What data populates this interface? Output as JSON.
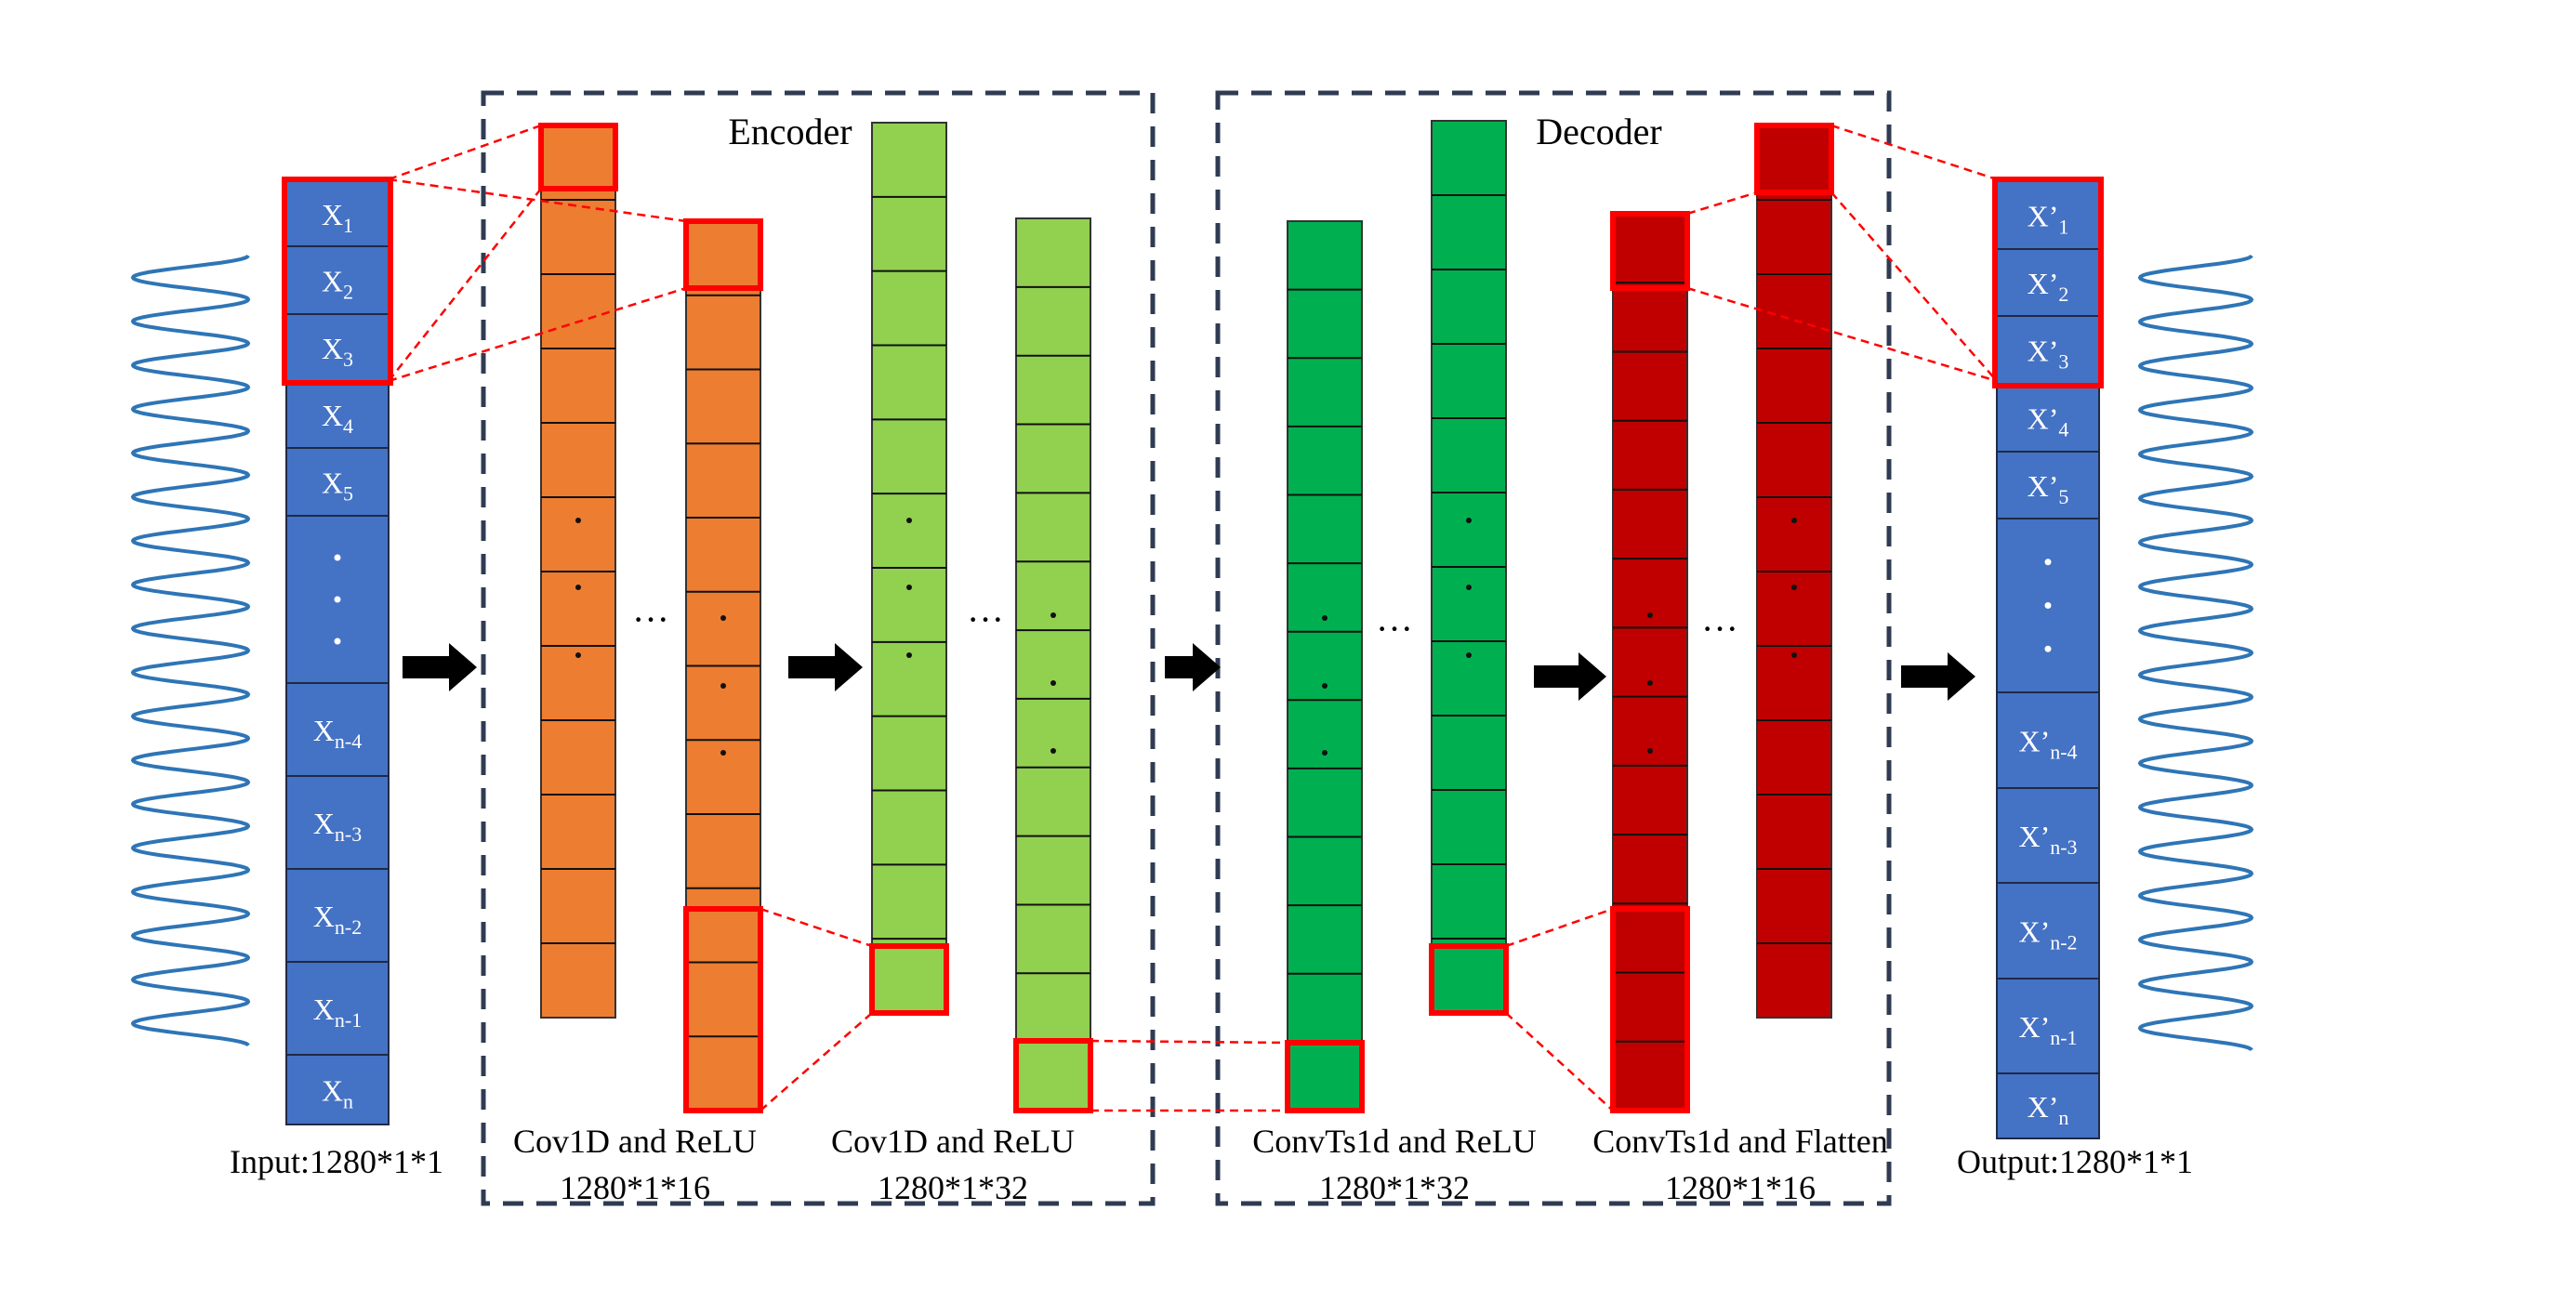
{
  "encoder": {
    "title": "Encoder"
  },
  "decoder": {
    "title": "Decoder"
  },
  "input": {
    "caption": "Input:1280*1*1",
    "cells": [
      "1",
      "2",
      "3",
      "4",
      "5",
      "n-4",
      "n-3",
      "n-2",
      "n-1",
      "n"
    ],
    "var": "X",
    "color": "#4472C4"
  },
  "output": {
    "caption": "Output:1280*1*1",
    "cells": [
      "1",
      "2",
      "3",
      "4",
      "5",
      "n-4",
      "n-3",
      "n-2",
      "n-1",
      "n"
    ],
    "var": "X’",
    "color": "#4472C4"
  },
  "layers": [
    {
      "label_line1": "Cov1D and ReLU",
      "label_line2": "1280*1*16",
      "color": "#ED7D31"
    },
    {
      "label_line1": "Cov1D and ReLU",
      "label_line2": "1280*1*32",
      "color": "#92D050"
    },
    {
      "label_line1": "ConvTs1d and ReLU",
      "label_line2": "1280*1*32",
      "color": "#00B050"
    },
    {
      "label_line1": "ConvTs1d and Flatten",
      "label_line2": "1280*1*16",
      "color": "#C00000"
    }
  ],
  "highlight_color": "#FF0000",
  "wave_color": "#2E75B6",
  "ellipsis": "···"
}
